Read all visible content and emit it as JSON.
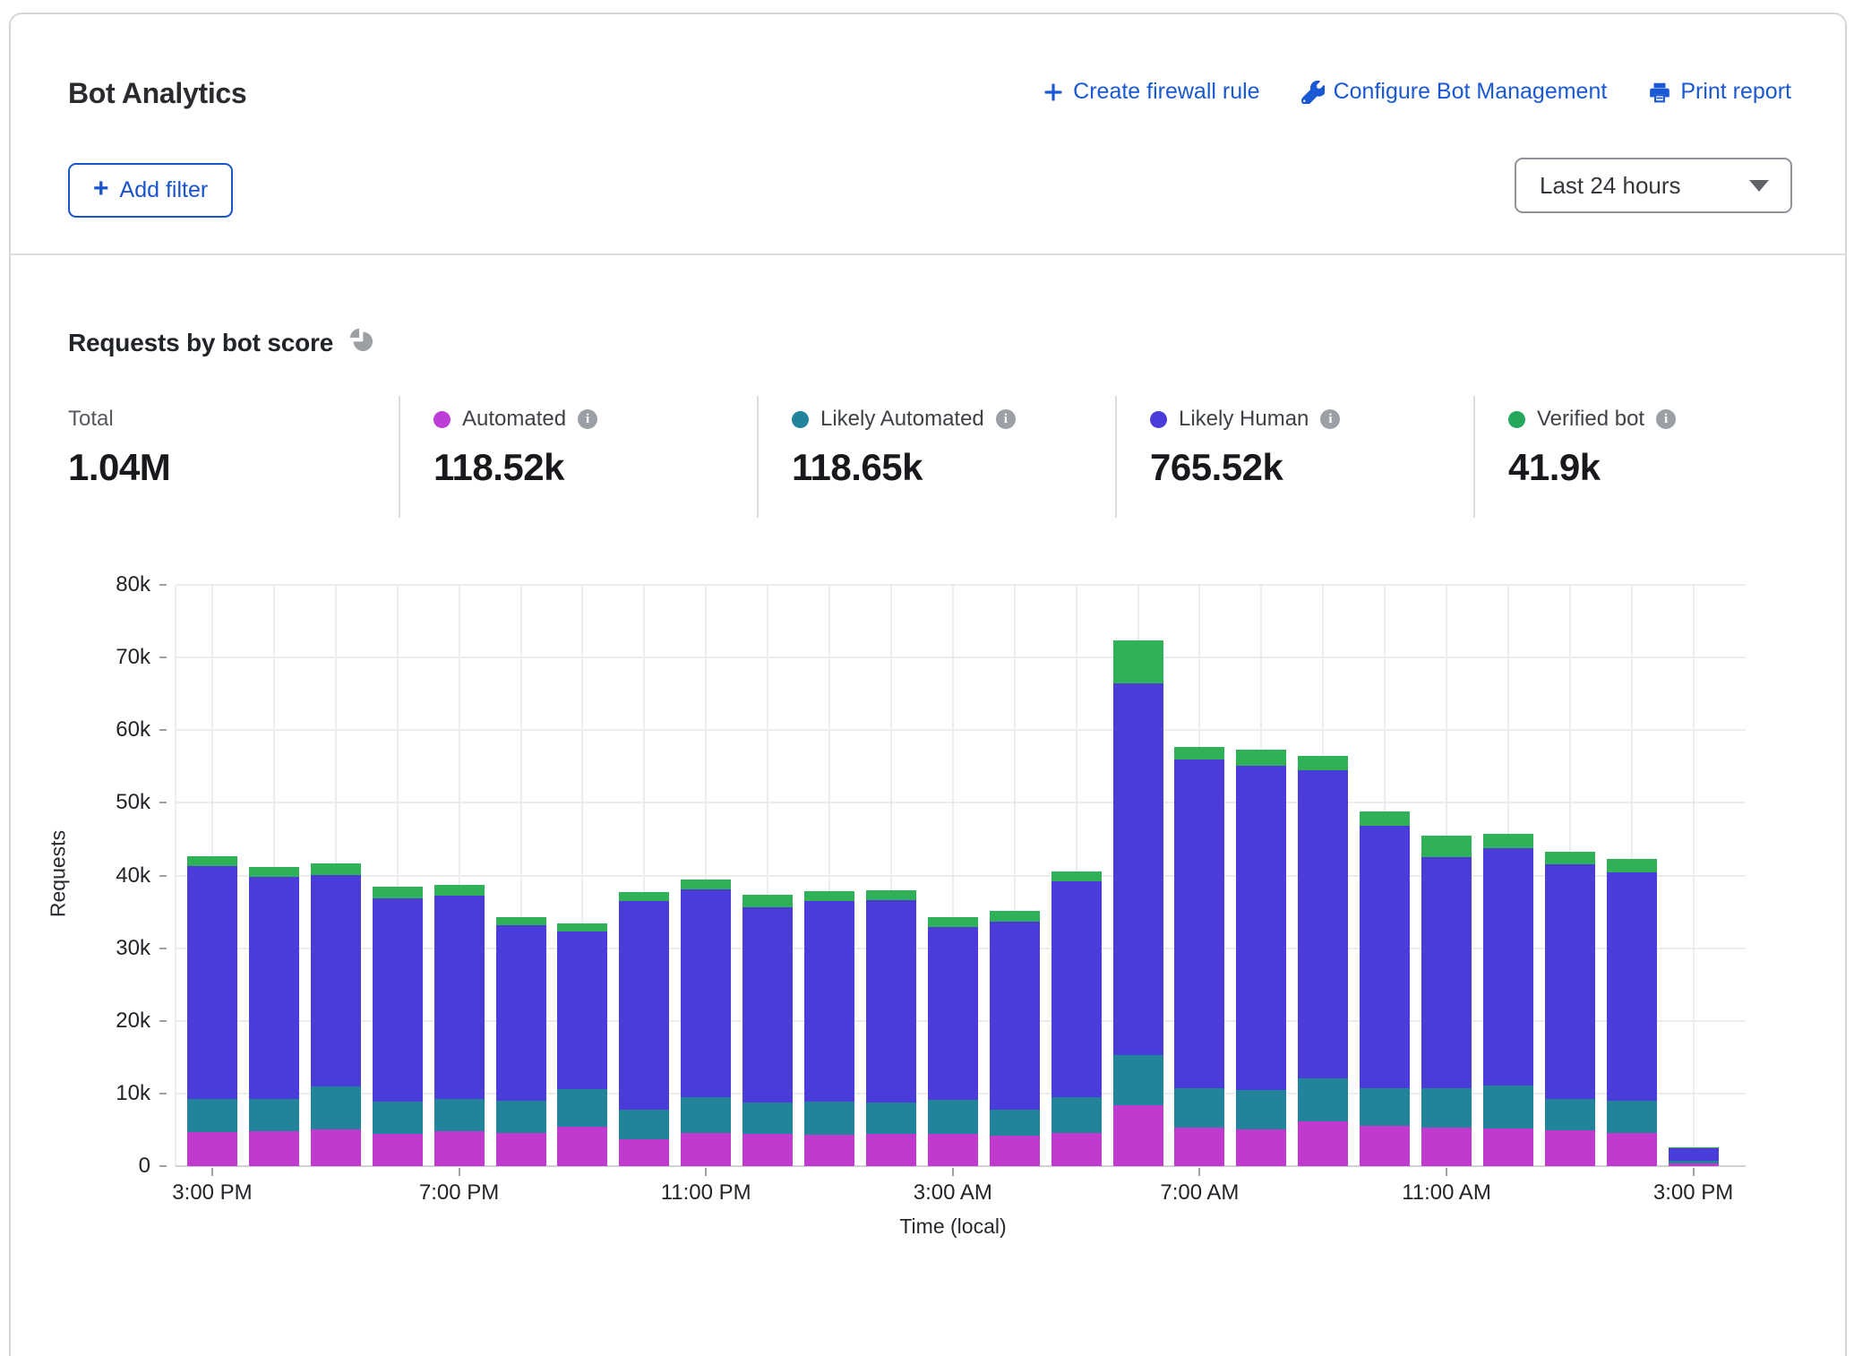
{
  "header": {
    "title": "Bot Analytics",
    "actions": [
      {
        "label": "Create firewall rule"
      },
      {
        "label": "Configure Bot Management"
      },
      {
        "label": "Print report"
      }
    ],
    "add_filter_label": "Add filter",
    "time_range_value": "Last 24 hours"
  },
  "section": {
    "title": "Requests by bot score"
  },
  "stats": {
    "total": {
      "label": "Total",
      "value": "1.04M"
    },
    "series": [
      {
        "label": "Automated",
        "value": "118.52k",
        "color": "#bd3dd6"
      },
      {
        "label": "Likely Automated",
        "value": "118.65k",
        "color": "#21849a"
      },
      {
        "label": "Likely Human",
        "value": "765.52k",
        "color": "#4a3cd9"
      },
      {
        "label": "Verified bot",
        "value": "41.9k",
        "color": "#26a85c"
      }
    ]
  },
  "chart_data": {
    "type": "bar",
    "stacked": true,
    "title": "Requests by bot score",
    "ylabel": "Requests",
    "xlabel": "Time (local)",
    "ylim": [
      0,
      80000
    ],
    "grid": true,
    "bar_count": 25,
    "y_ticks": [
      "0",
      "10k",
      "20k",
      "30k",
      "40k",
      "50k",
      "60k",
      "70k",
      "80k"
    ],
    "x_tick_labels": [
      "3:00 PM",
      "7:00 PM",
      "11:00 PM",
      "3:00 AM",
      "7:00 AM",
      "11:00 AM",
      "3:00 PM"
    ],
    "x_tick_positions": [
      0,
      4,
      8,
      12,
      16,
      20,
      24
    ],
    "series": [
      {
        "name": "Automated",
        "color": "#c13ad0",
        "values": [
          4700,
          4800,
          5100,
          4400,
          4800,
          4500,
          5400,
          3700,
          4500,
          4400,
          4300,
          4400,
          4400,
          4200,
          4500,
          8400,
          5300,
          5100,
          6200,
          5500,
          5300,
          5200,
          4900,
          4500,
          400
        ]
      },
      {
        "name": "Likely Automated",
        "color": "#21849a",
        "values": [
          4500,
          4500,
          5900,
          4500,
          4500,
          4500,
          5200,
          4100,
          5000,
          4400,
          4600,
          4400,
          4700,
          3600,
          5000,
          6900,
          5400,
          5400,
          5900,
          5200,
          5400,
          5900,
          4300,
          4500,
          400
        ]
      },
      {
        "name": "Likely Human",
        "color": "#4a3cd9",
        "values": [
          32100,
          30500,
          29100,
          28000,
          27900,
          24100,
          21700,
          28700,
          28600,
          26800,
          27600,
          27800,
          23800,
          25800,
          29700,
          51200,
          45300,
          44600,
          42400,
          36200,
          31800,
          32600,
          32400,
          31400,
          1700
        ]
      },
      {
        "name": "Verified bot",
        "color": "#2fb257",
        "values": [
          1300,
          1400,
          1600,
          1500,
          1500,
          1200,
          1100,
          1200,
          1300,
          1700,
          1400,
          1400,
          1400,
          1500,
          1400,
          5800,
          1700,
          2200,
          2000,
          1900,
          3000,
          2000,
          1700,
          1900,
          100
        ]
      }
    ]
  }
}
